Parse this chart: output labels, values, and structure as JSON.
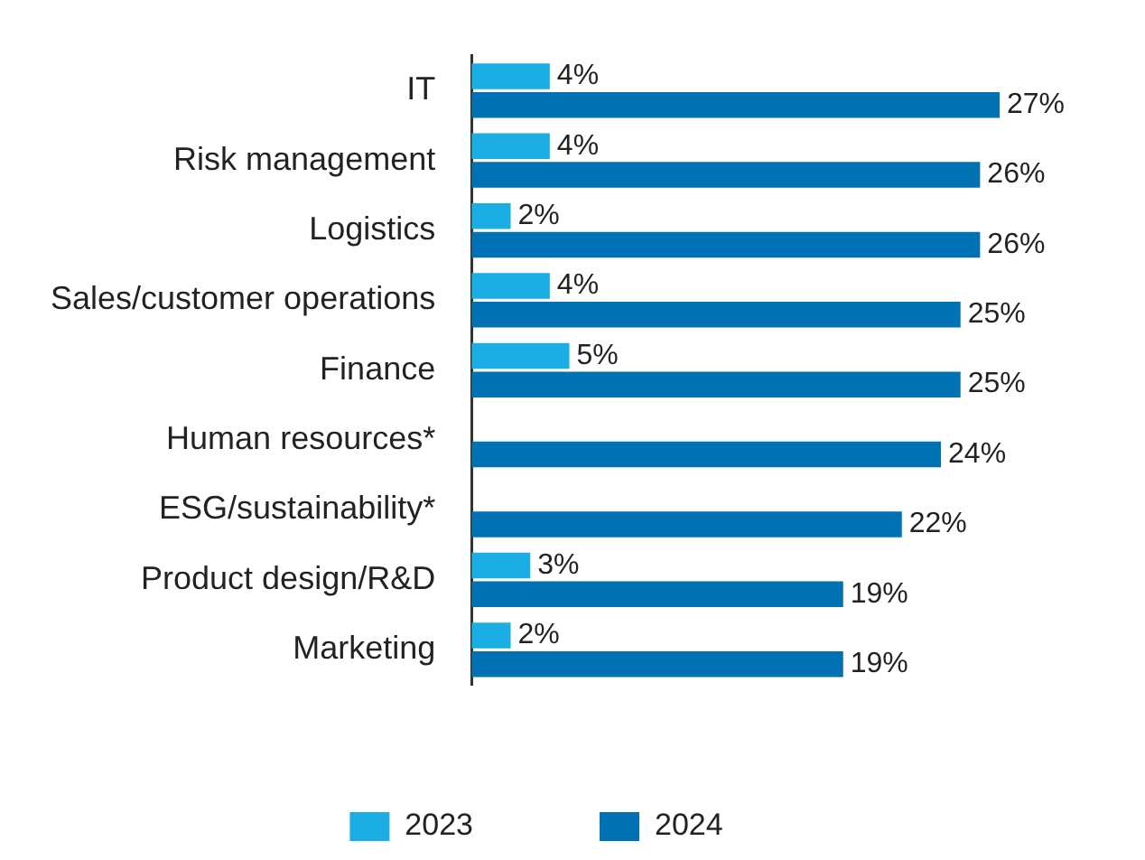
{
  "chart_data": {
    "type": "bar",
    "orientation": "horizontal",
    "tick_labels": "y",
    "legend": "bottom",
    "categories": [
      "IT",
      "Risk management",
      "Logistics",
      "Sales/customer operations",
      "Finance",
      "Human resources*",
      "ESG/sustainability*",
      "Product design/R&D",
      "Marketing"
    ],
    "series": [
      {
        "name": "2023",
        "color": "#1aaee5",
        "values": [
          4,
          4,
          2,
          4,
          5,
          null,
          null,
          3,
          2
        ],
        "value_labels": [
          "4%",
          "4%",
          "2%",
          "4%",
          "5%",
          null,
          null,
          "3%",
          "2%"
        ]
      },
      {
        "name": "2024",
        "color": "#0071b3",
        "values": [
          27,
          26,
          26,
          25,
          25,
          24,
          22,
          19,
          19
        ],
        "value_labels": [
          "27%",
          "26%",
          "26%",
          "25%",
          "25%",
          "24%",
          "22%",
          "19%",
          "19%"
        ]
      }
    ]
  }
}
